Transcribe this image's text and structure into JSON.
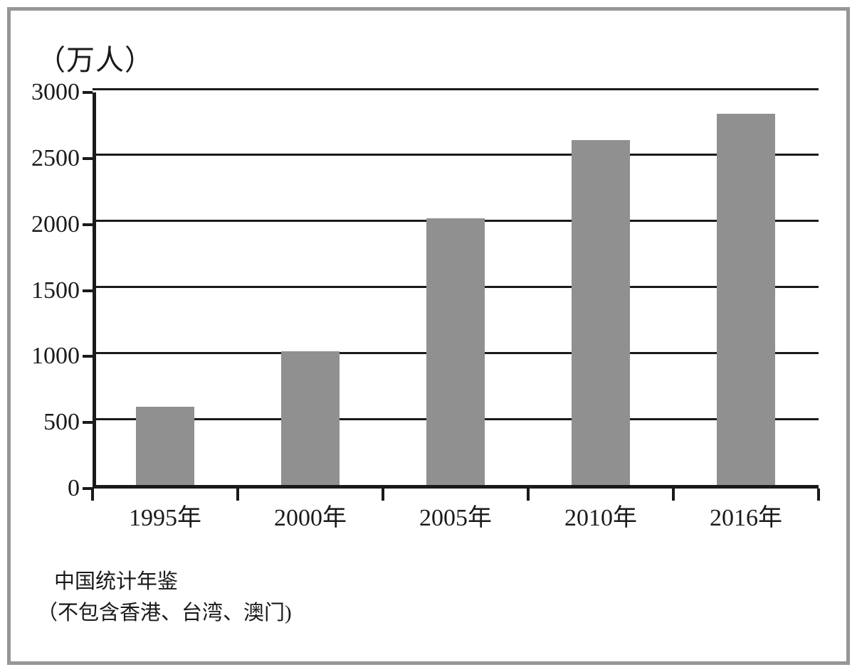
{
  "chart_data": {
    "type": "bar",
    "title": "",
    "unit_label": "（万人）",
    "categories": [
      "1995年",
      "2000年",
      "2005年",
      "2010年",
      "2016年"
    ],
    "values": [
      590,
      1010,
      2020,
      2610,
      2810
    ],
    "xlabel": "",
    "ylabel": "（万人）",
    "ylim": [
      0,
      3000
    ],
    "yticks": [
      0,
      500,
      1000,
      1500,
      2000,
      2500,
      3000
    ],
    "grid": true,
    "legend": false,
    "bar_color": "#909090",
    "axis_color": "#1a1a1a",
    "frame_color": "#969696",
    "source_line1": "中国统计年鉴",
    "source_line2": "（不包含香港、台湾、澳门)"
  }
}
